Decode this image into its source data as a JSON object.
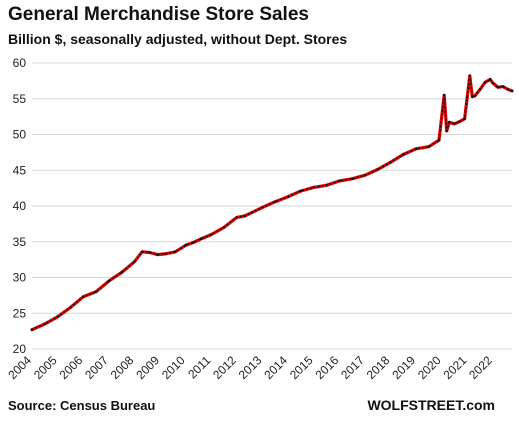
{
  "title": "General Merchandise Store Sales",
  "subtitle": "Billion $, seasonally adjusted, without Dept. Stores",
  "source": "Source: Census Bureau",
  "brand": "WOLFSTREET.com",
  "colors": {
    "line_primary": "#e00000",
    "line_secondary": "#111111",
    "grid": "#d9d9d9"
  },
  "chart_data": {
    "type": "line",
    "title": "General Merchandise Store Sales",
    "subtitle": "Billion $, seasonally adjusted, without Dept. Stores",
    "xlabel": "",
    "ylabel": "",
    "ylim": [
      20,
      60
    ],
    "yticks": [
      20,
      25,
      30,
      35,
      40,
      45,
      50,
      55,
      60
    ],
    "xlim": [
      2004.0,
      2022.75
    ],
    "xticks": [
      "2004",
      "2005",
      "2006",
      "2007",
      "2008",
      "2009",
      "2010",
      "2011",
      "2012",
      "2013",
      "2014",
      "2015",
      "2016",
      "2017",
      "2018",
      "2019",
      "2020",
      "2021",
      "2022"
    ],
    "grid": "horizontal",
    "legend": "none",
    "series": [
      {
        "x": [
          2004.0,
          2004.5,
          2005.0,
          2005.5,
          2006.0,
          2006.5,
          2007.0,
          2007.5,
          2008.0,
          2008.3,
          2008.6,
          2008.9,
          2009.2,
          2009.6,
          2010.0,
          2010.3,
          2010.6,
          2011.0,
          2011.5,
          2012.0,
          2012.3,
          2012.6,
          2013.0,
          2013.5,
          2014.0,
          2014.5,
          2015.0,
          2015.5,
          2016.0,
          2016.5,
          2017.0,
          2017.5,
          2018.0,
          2018.5,
          2019.0,
          2019.5,
          2019.9,
          2020.1,
          2020.2,
          2020.3,
          2020.5,
          2020.7,
          2020.9,
          2021.0,
          2021.1,
          2021.2,
          2021.3,
          2021.5,
          2021.7,
          2021.9,
          2022.0,
          2022.2,
          2022.4,
          2022.6,
          2022.75
        ],
        "values": [
          22.7,
          23.5,
          24.5,
          25.8,
          27.3,
          28.0,
          29.5,
          30.7,
          32.2,
          33.6,
          33.5,
          33.2,
          33.3,
          33.6,
          34.5,
          34.9,
          35.4,
          36.0,
          37.0,
          38.4,
          38.6,
          39.1,
          39.8,
          40.6,
          41.3,
          42.1,
          42.6,
          42.9,
          43.5,
          43.8,
          44.3,
          45.1,
          46.1,
          47.2,
          48.0,
          48.3,
          49.2,
          55.5,
          50.5,
          51.7,
          51.5,
          51.8,
          52.2,
          55.2,
          58.2,
          55.3,
          55.4,
          56.3,
          57.3,
          57.7,
          57.2,
          56.6,
          56.7,
          56.3,
          56.1
        ]
      }
    ]
  }
}
